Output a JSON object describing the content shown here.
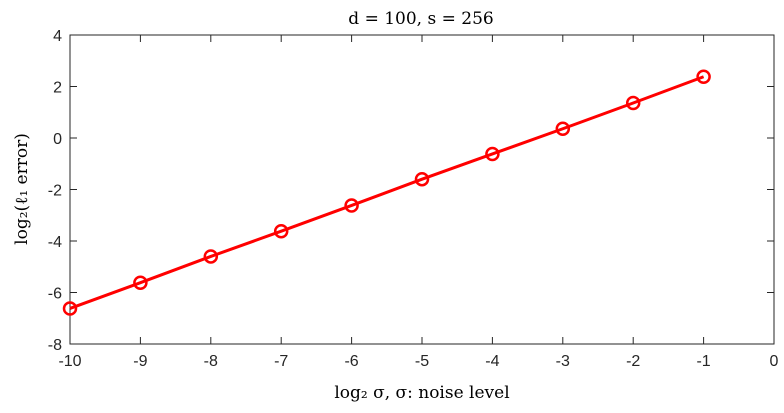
{
  "chart_data": {
    "type": "line",
    "title": "d = 100, s = 256",
    "xlabel": "log₂ σ, σ: noise level",
    "ylabel": "log₂(ℓ₁ error)",
    "xlim": [
      -10,
      0
    ],
    "ylim": [
      -8,
      4
    ],
    "xticks": [
      -10,
      -9,
      -8,
      -7,
      -6,
      -5,
      -4,
      -3,
      -2,
      -1,
      0
    ],
    "yticks": [
      -8,
      -6,
      -4,
      -2,
      0,
      2,
      4
    ],
    "grid": false,
    "series": [
      {
        "color": "#ff0000",
        "marker": "circle",
        "x": [
          -10,
          -9,
          -8,
          -7,
          -6,
          -5,
          -4,
          -3,
          -2,
          -1
        ],
        "y": [
          -6.62,
          -5.62,
          -4.6,
          -3.62,
          -2.62,
          -1.6,
          -0.62,
          0.36,
          1.36,
          2.38
        ]
      }
    ]
  }
}
